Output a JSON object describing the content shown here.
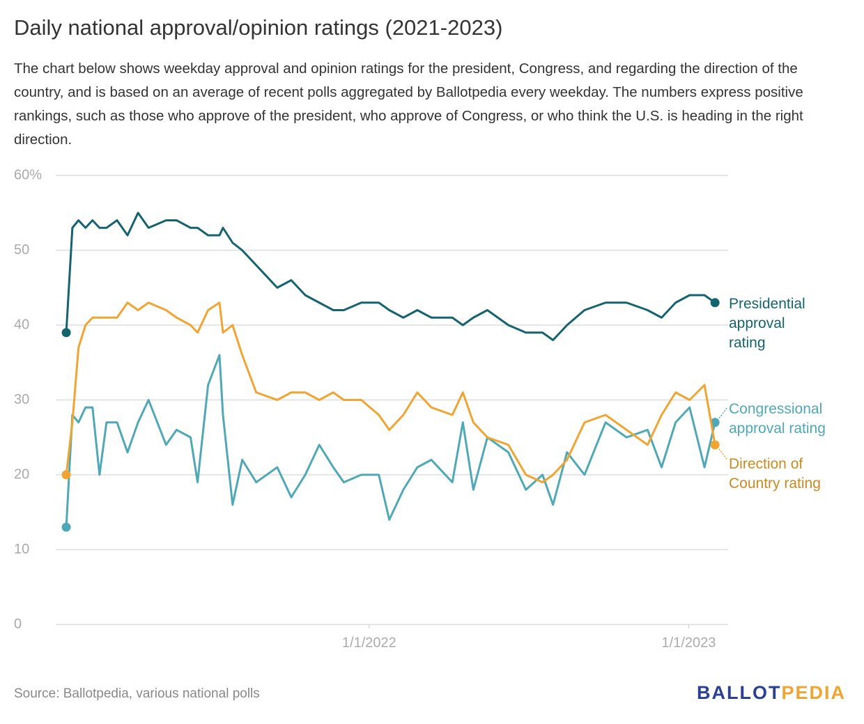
{
  "chart_data": {
    "type": "line",
    "title": "Daily national approval/opinion ratings (2021-2023)",
    "subtitle": "The chart below shows weekday approval and opinion ratings for the president, Congress, and regarding the direction of the country, and is based on an average of recent polls aggregated by Ballotpedia every weekday. The numbers express positive rankings, such as those who approve of the president, who approve of Congress, or who think the U.S. is heading in the right direction.",
    "source": "Source: Ballotpedia, various national polls",
    "logo": {
      "left": "BALLOT",
      "right": "PEDIA"
    },
    "x": [
      "2021-01-20",
      "2021-01-27",
      "2021-02-03",
      "2021-02-11",
      "2021-02-19",
      "2021-02-27",
      "2021-03-07",
      "2021-03-19",
      "2021-03-31",
      "2021-04-12",
      "2021-04-24",
      "2021-05-14",
      "2021-05-26",
      "2021-06-11",
      "2021-06-19",
      "2021-07-01",
      "2021-07-14",
      "2021-07-18",
      "2021-07-29",
      "2021-08-09",
      "2021-08-25",
      "2021-09-18",
      "2021-10-04",
      "2021-10-20",
      "2021-11-05",
      "2021-11-21",
      "2021-12-03",
      "2021-12-23",
      "2022-01-12",
      "2022-01-24",
      "2022-02-09",
      "2022-02-25",
      "2022-03-13",
      "2022-04-06",
      "2022-04-18",
      "2022-04-30",
      "2022-05-16",
      "2022-06-09",
      "2022-06-29",
      "2022-07-18",
      "2022-07-30",
      "2022-08-15",
      "2022-09-04",
      "2022-09-28",
      "2022-10-22",
      "2022-11-15",
      "2022-12-01",
      "2022-12-17",
      "2023-01-02",
      "2023-01-19",
      "2023-01-31"
    ],
    "series": [
      {
        "name": "Presidential approval rating",
        "color": "#14636e",
        "values": [
          39,
          53,
          54,
          53,
          54,
          53,
          53,
          54,
          52,
          55,
          53,
          54,
          54,
          53,
          53,
          52,
          52,
          53,
          51,
          50,
          48,
          45,
          46,
          44,
          43,
          42,
          42,
          43,
          43,
          42,
          41,
          42,
          41,
          41,
          40,
          41,
          42,
          40,
          39,
          39,
          38,
          40,
          42,
          43,
          43,
          42,
          41,
          43,
          44,
          44,
          43
        ]
      },
      {
        "name": "Congressional approval rating",
        "color": "#4ea8b5",
        "values": [
          13,
          28,
          27,
          29,
          29,
          20,
          27,
          27,
          23,
          27,
          30,
          24,
          26,
          25,
          19,
          32,
          36,
          28,
          16,
          22,
          19,
          21,
          17,
          20,
          24,
          21,
          19,
          20,
          20,
          14,
          18,
          21,
          22,
          19,
          27,
          18,
          25,
          23,
          18,
          20,
          16,
          23,
          20,
          27,
          25,
          26,
          21,
          27,
          29,
          21,
          27
        ]
      },
      {
        "name": "Direction of Country rating",
        "color": "#f0a431",
        "values": [
          20,
          27,
          37,
          40,
          41,
          41,
          41,
          41,
          43,
          42,
          43,
          42,
          41,
          40,
          39,
          42,
          43,
          39,
          40,
          36,
          31,
          30,
          31,
          31,
          30,
          31,
          30,
          30,
          28,
          26,
          28,
          31,
          29,
          28,
          31,
          27,
          25,
          24,
          20,
          19,
          20,
          22,
          27,
          28,
          26,
          24,
          28,
          31,
          30,
          32,
          24
        ]
      }
    ],
    "xlim": [
      "2021-01-08",
      "2023-02-15"
    ],
    "xticks": [
      {
        "value": "2022-01-01",
        "label": "1/1/2022"
      },
      {
        "value": "2023-01-01",
        "label": "1/1/2023"
      }
    ],
    "ylim": [
      0,
      60
    ],
    "yticks": [
      0,
      10,
      20,
      30,
      40,
      50,
      {
        "value": 60,
        "label": "60%"
      }
    ],
    "grid": true
  }
}
